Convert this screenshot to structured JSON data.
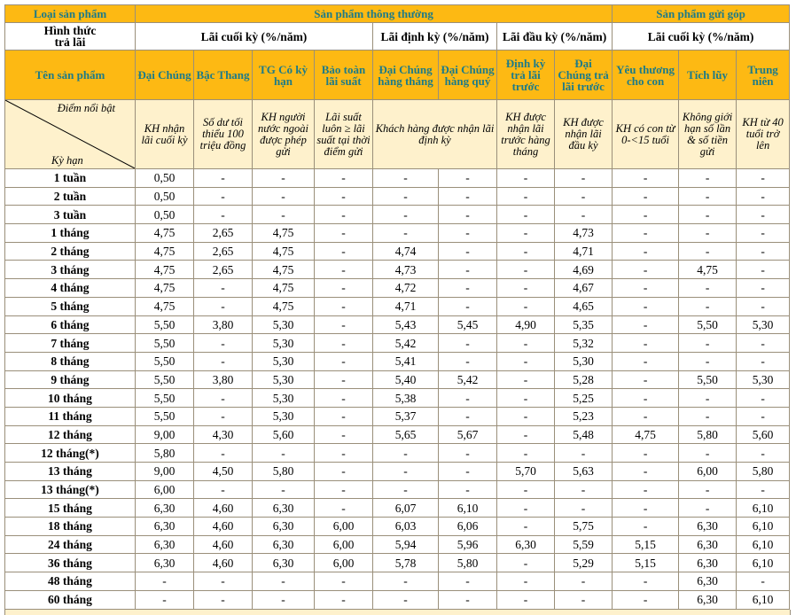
{
  "header": {
    "product_type_label": "Loại sản phẩm",
    "group_regular": "Sản phẩm thông thường",
    "group_savings": "Sản phẩm gửi góp",
    "payment_method_label": "Hình thức trả lãi",
    "pay_end_regular": "Lãi cuối kỳ (%/năm)",
    "pay_periodic": "Lãi định kỳ (%/năm)",
    "pay_upfront": "Lãi đầu kỳ (%/năm)",
    "pay_end_savings": "Lãi cuối kỳ (%/năm)",
    "product_name_label": "Tên sản phẩm",
    "highlight_label": "Điểm nổi bật",
    "term_label": "Kỳ hạn",
    "periodic_highlight": "Khách hàng được nhận lãi định kỳ"
  },
  "products": [
    {
      "name": "Đại Chúng",
      "highlight": "KH nhận lãi cuối kỳ"
    },
    {
      "name": "Bậc Thang",
      "highlight": "Số dư tối thiểu 100 triệu đồng"
    },
    {
      "name": "TG Có kỳ hạn",
      "highlight": "KH người nước ngoài được phép gửi"
    },
    {
      "name": "Bảo toàn lãi suất",
      "highlight": "Lãi suất luôn ≥ lãi suất tại thời điểm gửi"
    },
    {
      "name": "Đại Chúng hàng tháng",
      "highlight": ""
    },
    {
      "name": "Đại Chúng hàng quý",
      "highlight": ""
    },
    {
      "name": "Định kỳ trả lãi trước",
      "highlight": "KH được nhận lãi trước hàng tháng"
    },
    {
      "name": "Đại Chúng trả lãi trước",
      "highlight": "KH được nhận lãi đầu kỳ"
    },
    {
      "name": "Yêu thương cho con",
      "highlight": "KH có con từ 0-<15 tuổi"
    },
    {
      "name": "Tích lũy",
      "highlight": "Không giới hạn số lần & số tiền gửi"
    },
    {
      "name": "Trung niên",
      "highlight": "KH từ 40 tuổi trở lên"
    }
  ],
  "rows": [
    {
      "term": "1 tuần",
      "values": [
        "0,50",
        "-",
        "-",
        "-",
        "-",
        "-",
        "-",
        "-",
        "-",
        "-",
        "-"
      ]
    },
    {
      "term": "2 tuần",
      "values": [
        "0,50",
        "-",
        "-",
        "-",
        "-",
        "-",
        "-",
        "-",
        "-",
        "-",
        "-"
      ]
    },
    {
      "term": "3 tuần",
      "values": [
        "0,50",
        "-",
        "-",
        "-",
        "-",
        "-",
        "-",
        "-",
        "-",
        "-",
        "-"
      ]
    },
    {
      "term": "1 tháng",
      "values": [
        "4,75",
        "2,65",
        "4,75",
        "-",
        "-",
        "-",
        "-",
        "4,73",
        "-",
        "-",
        "-"
      ]
    },
    {
      "term": "2 tháng",
      "values": [
        "4,75",
        "2,65",
        "4,75",
        "-",
        "4,74",
        "-",
        "-",
        "4,71",
        "-",
        "-",
        "-"
      ]
    },
    {
      "term": "3 tháng",
      "values": [
        "4,75",
        "2,65",
        "4,75",
        "-",
        "4,73",
        "-",
        "-",
        "4,69",
        "-",
        "4,75",
        "-"
      ]
    },
    {
      "term": "4 tháng",
      "values": [
        "4,75",
        "-",
        "4,75",
        "-",
        "4,72",
        "-",
        "-",
        "4,67",
        "-",
        "-",
        "-"
      ]
    },
    {
      "term": "5 tháng",
      "values": [
        "4,75",
        "-",
        "4,75",
        "-",
        "4,71",
        "-",
        "-",
        "4,65",
        "-",
        "-",
        "-"
      ]
    },
    {
      "term": "6 tháng",
      "values": [
        "5,50",
        "3,80",
        "5,30",
        "-",
        "5,43",
        "5,45",
        "4,90",
        "5,35",
        "-",
        "5,50",
        "5,30"
      ]
    },
    {
      "term": "7 tháng",
      "values": [
        "5,50",
        "-",
        "5,30",
        "-",
        "5,42",
        "-",
        "-",
        "5,32",
        "-",
        "-",
        "-"
      ]
    },
    {
      "term": "8 tháng",
      "values": [
        "5,50",
        "-",
        "5,30",
        "-",
        "5,41",
        "-",
        "-",
        "5,30",
        "-",
        "-",
        "-"
      ]
    },
    {
      "term": "9 tháng",
      "values": [
        "5,50",
        "3,80",
        "5,30",
        "-",
        "5,40",
        "5,42",
        "-",
        "5,28",
        "-",
        "5,50",
        "5,30"
      ]
    },
    {
      "term": "10 tháng",
      "values": [
        "5,50",
        "-",
        "5,30",
        "-",
        "5,38",
        "-",
        "-",
        "5,25",
        "-",
        "-",
        "-"
      ]
    },
    {
      "term": "11 tháng",
      "values": [
        "5,50",
        "-",
        "5,30",
        "-",
        "5,37",
        "-",
        "-",
        "5,23",
        "-",
        "-",
        "-"
      ]
    },
    {
      "term": "12 tháng",
      "values": [
        "9,00",
        "4,30",
        "5,60",
        "-",
        "5,65",
        "5,67",
        "-",
        "5,48",
        "4,75",
        "5,80",
        "5,60"
      ]
    },
    {
      "term": "12 tháng(*)",
      "values": [
        "5,80",
        "-",
        "-",
        "-",
        "-",
        "-",
        "-",
        "-",
        "-",
        "-",
        "-"
      ]
    },
    {
      "term": "13 tháng",
      "values": [
        "9,00",
        "4,50",
        "5,80",
        "-",
        "-",
        "-",
        "5,70",
        "5,63",
        "-",
        "6,00",
        "5,80"
      ]
    },
    {
      "term": "13 tháng(*)",
      "values": [
        "6,00",
        "-",
        "-",
        "-",
        "-",
        "-",
        "-",
        "-",
        "-",
        "-",
        "-"
      ]
    },
    {
      "term": "15 tháng",
      "values": [
        "6,30",
        "4,60",
        "6,30",
        "-",
        "6,07",
        "6,10",
        "-",
        "-",
        "-",
        "-",
        "6,10"
      ]
    },
    {
      "term": "18 tháng",
      "values": [
        "6,30",
        "4,60",
        "6,30",
        "6,00",
        "6,03",
        "6,06",
        "-",
        "5,75",
        "-",
        "6,30",
        "6,10"
      ]
    },
    {
      "term": "24 tháng",
      "values": [
        "6,30",
        "4,60",
        "6,30",
        "6,00",
        "5,94",
        "5,96",
        "6,30",
        "5,59",
        "5,15",
        "6,30",
        "6,10"
      ]
    },
    {
      "term": "36 tháng",
      "values": [
        "6,30",
        "4,60",
        "6,30",
        "6,00",
        "5,78",
        "5,80",
        "-",
        "5,29",
        "5,15",
        "6,30",
        "6,10"
      ]
    },
    {
      "term": "48 tháng",
      "values": [
        "-",
        "-",
        "-",
        "-",
        "-",
        "-",
        "-",
        "-",
        "-",
        "6,30",
        "-"
      ]
    },
    {
      "term": "60 tháng",
      "values": [
        "-",
        "-",
        "-",
        "-",
        "-",
        "-",
        "-",
        "-",
        "-",
        "6,30",
        "6,10"
      ]
    }
  ],
  "colors": {
    "header_bg": "#fdb913",
    "header_text": "#1d7b88",
    "highlight_bg": "#fef1cc"
  }
}
